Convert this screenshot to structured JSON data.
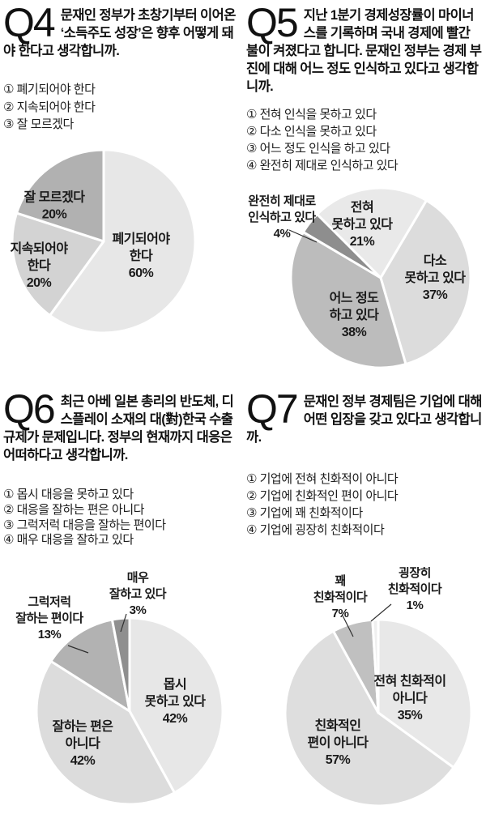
{
  "colors": {
    "background": "#ffffff",
    "text": "#161616",
    "label_text": "#1a1a1a",
    "leader_line": "#2e2e2e",
    "slice_gap": "#ffffff"
  },
  "questions": [
    {
      "number": "Q4",
      "title": "문재인 정부가 초창기부터 이어온 ‘소득주도 성장’은 향후 어떻게 돼야 한다고 생각합니까.",
      "options": [
        "① 폐기되어야 한다",
        "② 지속되어야 한다",
        "③ 잘 모르겠다"
      ]
    },
    {
      "number": "Q5",
      "title": "지난 1분기 경제성장률이 마이너스를 기록하며 국내 경제에 빨간 불이 켜졌다고 합니다. 문재인 정부는 경제 부진에 대해 어느 정도 인식하고 있다고 생각합니까.",
      "options": [
        "① 전혀 인식을 못하고 있다",
        "② 다소 인식을 못하고 있다",
        "③ 어느 정도 인식을 하고 있다",
        "④ 완전히 제대로 인식하고 있다"
      ]
    },
    {
      "number": "Q6",
      "title": "최근 아베 일본 총리의 반도체, 디스플레이 소재의 대(對)한국 수출 규제가 문제입니다. 정부의 현재까지 대응은 어떠하다고 생각합니까.",
      "options": [
        "① 몹시 대응을 못하고 있다",
        "② 대응을 잘하는 편은 아니다",
        "③ 그럭저럭 대응을 잘하는 편이다",
        "④ 매우 대응을 잘하고 있다"
      ]
    },
    {
      "number": "Q7",
      "title": "문재인 정부 경제팀은 기업에 대해 어떤 입장을 갖고 있다고 생각합니까.",
      "options": [
        "① 기업에 전혀 친화적이 아니다",
        "② 기업에 친화적인 편이 아니다",
        "③ 기업에 꽤 친화적이다",
        "④ 기업에 굉장히 친화적이다"
      ]
    }
  ],
  "chart_data": [
    {
      "type": "pie",
      "question_ref": "Q4",
      "unit": "%",
      "start_angle": 0,
      "categories": [
        "폐기되어야 한다",
        "지속되어야 한다",
        "잘 모르겠다"
      ],
      "values": [
        60,
        20,
        20
      ],
      "layout": {
        "svg": [
          300,
          290
        ],
        "center": [
          128,
          123
        ],
        "radius": 113,
        "gap_width": 3
      },
      "slices": [
        {
          "name": "폐기되어야 한다",
          "value": 60,
          "pct_label": "60%",
          "color": "#e7e7e7",
          "label_lines": [
            "폐기되어야",
            "한다"
          ],
          "label_pos": "inside",
          "label_at": [
            46,
            18
          ]
        },
        {
          "name": "지속되어야 한다",
          "value": 20,
          "pct_label": "20%",
          "color": "#d3d3d3",
          "label_lines": [
            "지속되어야",
            "한다"
          ],
          "label_pos": "inside",
          "label_at": [
            -80,
            30
          ]
        },
        {
          "name": "잘 모르겠다",
          "value": 20,
          "pct_label": "20%",
          "color": "#b1b1b1",
          "label_lines": [
            "잘 모르겠다"
          ],
          "label_pos": "inside",
          "label_at": [
            -61,
            -44
          ]
        }
      ]
    },
    {
      "type": "pie",
      "question_ref": "Q5",
      "unit": "%",
      "start_angle": -45,
      "categories": [
        "전혀 못하고 있다",
        "다소 못하고 있다",
        "어느 정도 하고 있다",
        "완전히 제대로 인식하고 있다"
      ],
      "values": [
        21,
        37,
        38,
        4
      ],
      "layout": {
        "svg": [
          300,
          252
        ],
        "center": [
          170,
          113
        ],
        "radius": 111,
        "gap_width": 3
      },
      "slices": [
        {
          "name": "전혀 못하고 있다",
          "value": 21,
          "pct_label": "21%",
          "color": "#e9e9e9",
          "label_lines": [
            "전혀",
            "못하고 있다"
          ],
          "label_pos": "inside",
          "label_at": [
            -23,
            -66
          ]
        },
        {
          "name": "다소 못하고 있다",
          "value": 37,
          "pct_label": "37%",
          "color": "#dcdcdc",
          "label_lines": [
            "다소",
            "못하고 있다"
          ],
          "label_pos": "inside",
          "label_at": [
            67,
            0
          ]
        },
        {
          "name": "어느 정도 하고 있다",
          "value": 38,
          "pct_label": "38%",
          "color": "#bcbcbc",
          "label_lines": [
            "어느 정도",
            "하고 있다"
          ],
          "label_pos": "inside",
          "label_at": [
            -33,
            46
          ]
        },
        {
          "name": "완전히 제대로 인식하고 있다",
          "value": 4,
          "pct_label": "4%",
          "color": "#8e8e8e",
          "label_lines": [
            "완전히 제대로",
            "인식하고 있다"
          ],
          "label_pos": "outside",
          "label_at": [
            48,
            38
          ],
          "leader": [
            [
              57,
              54
            ],
            [
              91,
              69
            ]
          ]
        }
      ]
    },
    {
      "type": "pie",
      "question_ref": "Q6",
      "unit": "%",
      "start_angle": 0,
      "categories": [
        "몹시 못하고 있다",
        "잘하는 편은 아니다",
        "그럭저럭 잘하는 편이다",
        "매우 잘하고 있다"
      ],
      "values": [
        42,
        42,
        13,
        3
      ],
      "layout": {
        "svg": [
          300,
          300
        ],
        "center": [
          160,
          178
        ],
        "radius": 115,
        "gap_width": 3
      },
      "slices": [
        {
          "name": "몹시 못하고 있다",
          "value": 42,
          "pct_label": "42%",
          "color": "#e7e7e7",
          "label_lines": [
            "몹시",
            "못하고 있다"
          ],
          "label_pos": "inside",
          "label_at": [
            56,
            -12
          ]
        },
        {
          "name": "잘하는 편은 아니다",
          "value": 42,
          "pct_label": "42%",
          "color": "#dcdcdc",
          "label_lines": [
            "잘하는 편은",
            "아니다"
          ],
          "label_pos": "inside",
          "label_at": [
            -58,
            40
          ]
        },
        {
          "name": "그럭저럭 잘하는 편이다",
          "value": 13,
          "pct_label": "13%",
          "color": "#b2b2b2",
          "label_lines": [
            "그럭저럭",
            "잘하는 편이다"
          ],
          "label_pos": "outside",
          "label_at": [
            61,
            63
          ],
          "leader": [
            [
              84,
              97
            ],
            [
              109,
              106
            ]
          ]
        },
        {
          "name": "매우 잘하고 있다",
          "value": 3,
          "pct_label": "3%",
          "color": "#8f8f8f",
          "label_lines": [
            "매우",
            "잘하고 있다"
          ],
          "label_pos": "outside",
          "label_at": [
            170,
            33
          ],
          "leader": [
            [
              156,
              58
            ],
            [
              149,
              80
            ]
          ]
        }
      ]
    },
    {
      "type": "pie",
      "question_ref": "Q7",
      "unit": "%",
      "start_angle": 0,
      "categories": [
        "전혀 친화적이 아니다",
        "친화적인 편이 아니다",
        "꽤 친화적이다",
        "굉장히 친화적이다"
      ],
      "values": [
        35,
        57,
        7,
        1
      ],
      "layout": {
        "svg": [
          300,
          300
        ],
        "center": [
          167,
          180
        ],
        "radius": 115,
        "gap_width": 3
      },
      "slices": [
        {
          "name": "전혀 친화적이 아니다",
          "value": 35,
          "pct_label": "35%",
          "color": "#e8e8e8",
          "label_lines": [
            "전혀 친화적이",
            "아니다"
          ],
          "label_pos": "inside",
          "label_at": [
            39,
            -18
          ]
        },
        {
          "name": "친화적인 편이 아니다",
          "value": 57,
          "pct_label": "57%",
          "color": "#dedede",
          "label_lines": [
            "친화적인",
            "편이 아니다"
          ],
          "label_pos": "inside",
          "label_at": [
            -50,
            37
          ]
        },
        {
          "name": "꽤 친화적이다",
          "value": 7,
          "pct_label": "7%",
          "color": "#c0c0c0",
          "label_lines": [
            "꽤",
            "친화적이다"
          ],
          "label_pos": "outside",
          "label_at": [
            120,
            37
          ],
          "leader": [
            [
              123,
              60
            ],
            [
              136,
              86
            ]
          ]
        },
        {
          "name": "굉장히 친화적이다",
          "value": 1,
          "pct_label": "1%",
          "color": "#efefef",
          "label_lines": [
            "굉장히",
            "친화적이다"
          ],
          "label_pos": "outside",
          "label_at": [
            212,
            27
          ],
          "leader": [
            [
              183,
              46
            ],
            [
              158,
              67
            ]
          ]
        }
      ]
    }
  ]
}
